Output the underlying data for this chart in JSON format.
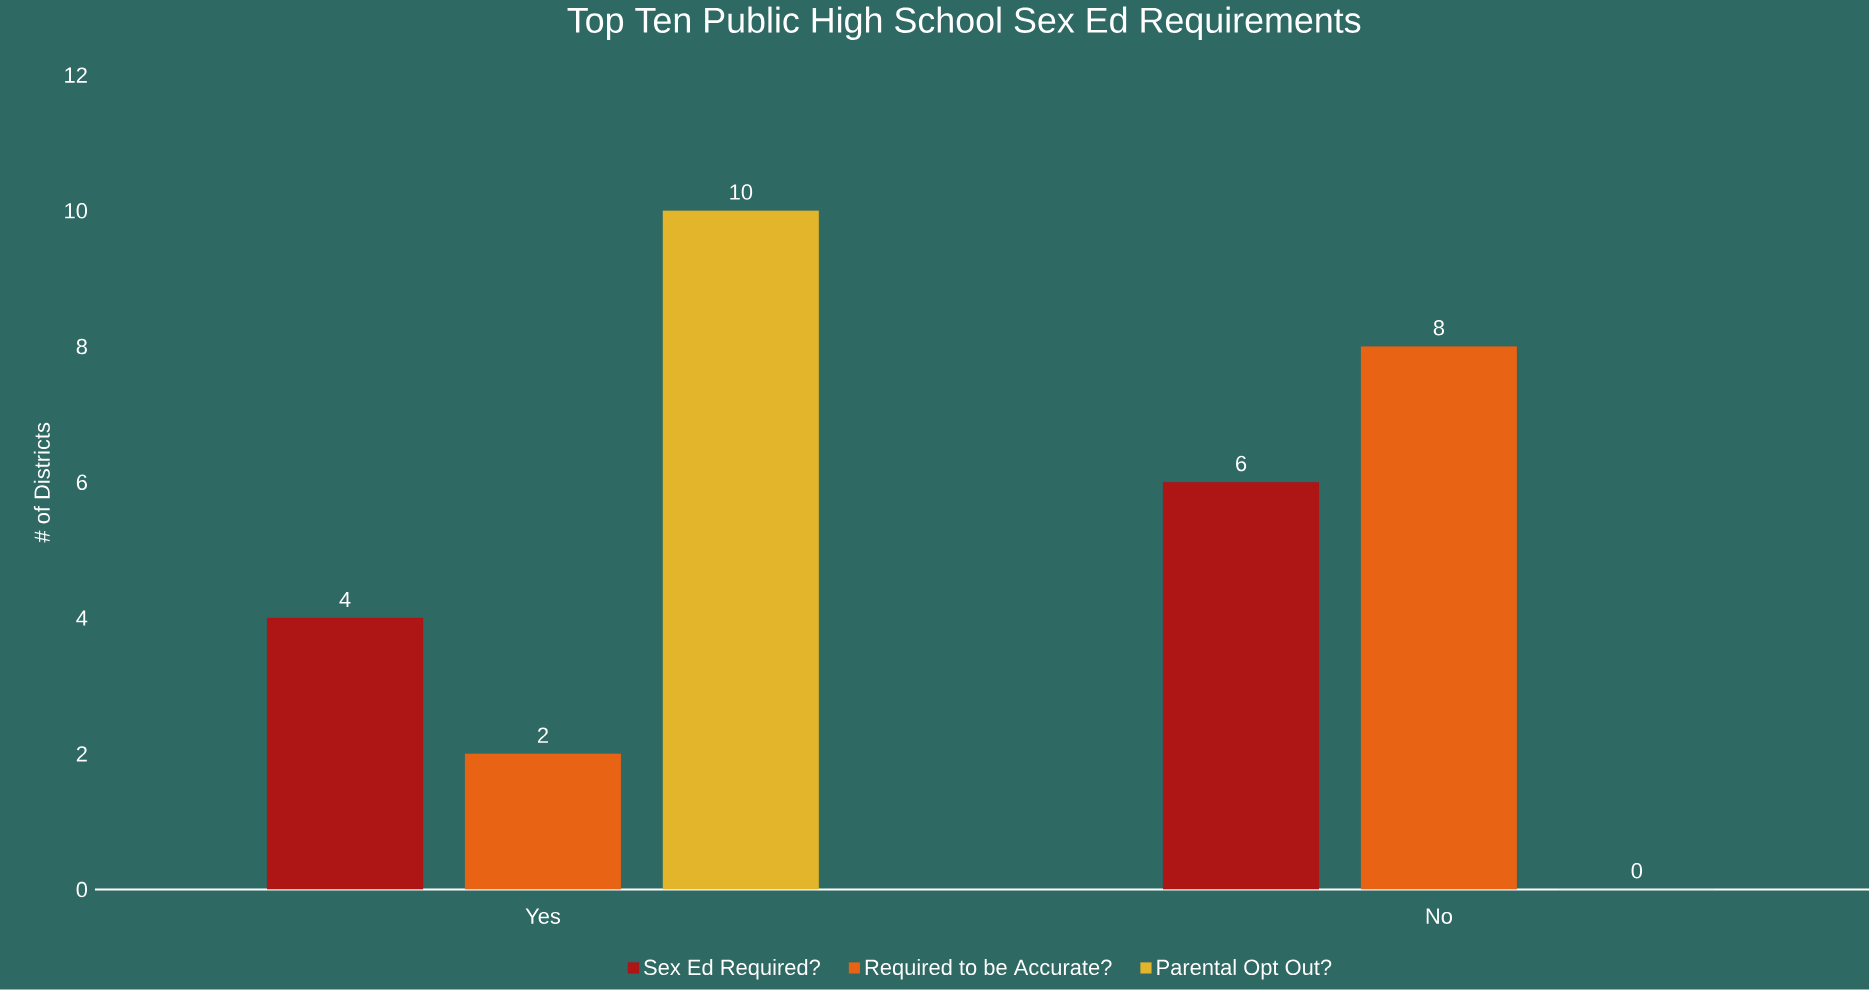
{
  "chart_data": {
    "type": "bar",
    "title": "Top Ten Public High School Sex Ed Requirements",
    "ylabel": "# of Districts",
    "categories": [
      "Yes",
      "No"
    ],
    "series": [
      {
        "name": "Sex Ed Required?",
        "color": "#ae1515",
        "values": [
          4,
          6
        ],
        "value_labels": [
          "4",
          "6"
        ]
      },
      {
        "name": "Required to be Accurate?",
        "color": "#e86414",
        "values": [
          2,
          8
        ],
        "value_labels": [
          "2",
          "8"
        ]
      },
      {
        "name": "Parental Opt Out?",
        "color": "#e3b52b",
        "values": [
          10,
          0
        ],
        "value_labels": [
          "10",
          "0"
        ]
      }
    ],
    "ylim": [
      0,
      12
    ],
    "yticks": [
      0,
      2,
      4,
      6,
      8,
      10,
      12
    ],
    "legend": "bottom",
    "grid": false
  }
}
